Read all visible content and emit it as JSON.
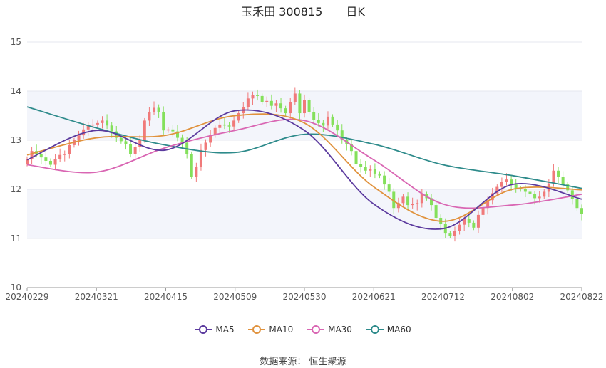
{
  "header": {
    "name_code": "玉禾田 300815",
    "period": "日K"
  },
  "legend": [
    "MA5",
    "MA10",
    "MA30",
    "MA60"
  ],
  "source_text": "数据来源： 恒生聚源",
  "colors": {
    "up": "#f07a7a",
    "down": "#84e05b",
    "MA5": "#5b3a9e",
    "MA10": "#e0923d",
    "MA30": "#d966b3",
    "MA60": "#2e8b8b"
  },
  "chart_data": {
    "type": "candlestick",
    "title": "玉禾田 300815",
    "xlabel": "",
    "ylabel": "",
    "ylim": [
      10,
      15
    ],
    "yticks": [
      10,
      11,
      12,
      13,
      14,
      15
    ],
    "xticks": [
      "20240229",
      "20240321",
      "20240415",
      "20240509",
      "20240530",
      "20240621",
      "20240712",
      "20240802",
      "20240822"
    ],
    "grid": "horizontal bands",
    "legend_position": "bottom",
    "candle_close": [
      12.62,
      12.78,
      12.72,
      12.65,
      12.58,
      12.5,
      12.62,
      12.7,
      12.72,
      12.9,
      13.0,
      13.1,
      13.22,
      13.3,
      13.32,
      13.35,
      13.4,
      13.3,
      13.18,
      13.05,
      12.98,
      12.92,
      12.72,
      12.86,
      13.0,
      13.4,
      13.58,
      13.66,
      13.58,
      13.2,
      13.22,
      13.18,
      13.05,
      12.95,
      12.72,
      12.26,
      12.45,
      12.8,
      12.95,
      13.1,
      13.25,
      13.32,
      13.3,
      13.28,
      13.4,
      13.55,
      13.68,
      13.85,
      13.92,
      13.9,
      13.78,
      13.8,
      13.7,
      13.75,
      13.65,
      13.55,
      13.78,
      13.95,
      13.55,
      13.82,
      13.58,
      13.42,
      13.35,
      13.3,
      13.48,
      13.32,
      13.2,
      13.0,
      12.92,
      12.78,
      12.52,
      12.45,
      12.38,
      12.42,
      12.32,
      12.28,
      12.1,
      11.95,
      11.62,
      11.72,
      11.85,
      11.68,
      11.7,
      11.72,
      11.9,
      11.82,
      11.68,
      11.42,
      11.3,
      11.1,
      11.05,
      11.15,
      11.28,
      11.4,
      11.32,
      11.22,
      11.48,
      11.62,
      11.78,
      11.92,
      12.05,
      12.15,
      12.2,
      12.1,
      12.02,
      12.0,
      11.95,
      11.9,
      11.82,
      11.85,
      11.95,
      12.12,
      12.38,
      12.26,
      12.1,
      11.98,
      11.8,
      11.62,
      11.5
    ],
    "ma_anchor_labels": [
      "20240229",
      "20240321",
      "20240415",
      "20240509",
      "20240530",
      "20240621",
      "20240712",
      "20240802",
      "20240822"
    ],
    "ma5": [
      12.6,
      13.2,
      12.8,
      13.6,
      13.2,
      11.7,
      11.2,
      12.1,
      11.8
    ],
    "ma10": [
      12.7,
      13.05,
      13.1,
      13.5,
      13.35,
      12.05,
      11.35,
      12.0,
      11.99
    ],
    "ma30": [
      12.5,
      12.35,
      12.85,
      13.2,
      13.4,
      12.6,
      11.7,
      11.68,
      11.9
    ],
    "ma60": [
      13.68,
      13.25,
      12.9,
      12.75,
      13.12,
      12.92,
      12.5,
      12.28,
      12.02
    ]
  }
}
